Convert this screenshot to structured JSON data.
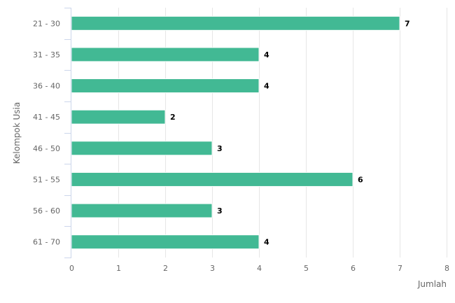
{
  "chart_data": {
    "type": "bar",
    "orientation": "horizontal",
    "categories": [
      "21 - 30",
      "31 - 35",
      "36 - 40",
      "41 - 45",
      "46 - 50",
      "51 - 55",
      "56 - 60",
      "61 - 70"
    ],
    "values": [
      7,
      4,
      4,
      2,
      3,
      6,
      3,
      4
    ],
    "xlabel": "Jumlah",
    "ylabel": "Kelompok Usia",
    "xlim": [
      0,
      8
    ],
    "xticks": [
      0,
      1,
      2,
      3,
      4,
      5,
      6,
      7,
      8
    ],
    "grid": true,
    "bar_color": "#42b994",
    "grid_color": "#e6e6e6",
    "axis_color": "#ccd6eb"
  }
}
